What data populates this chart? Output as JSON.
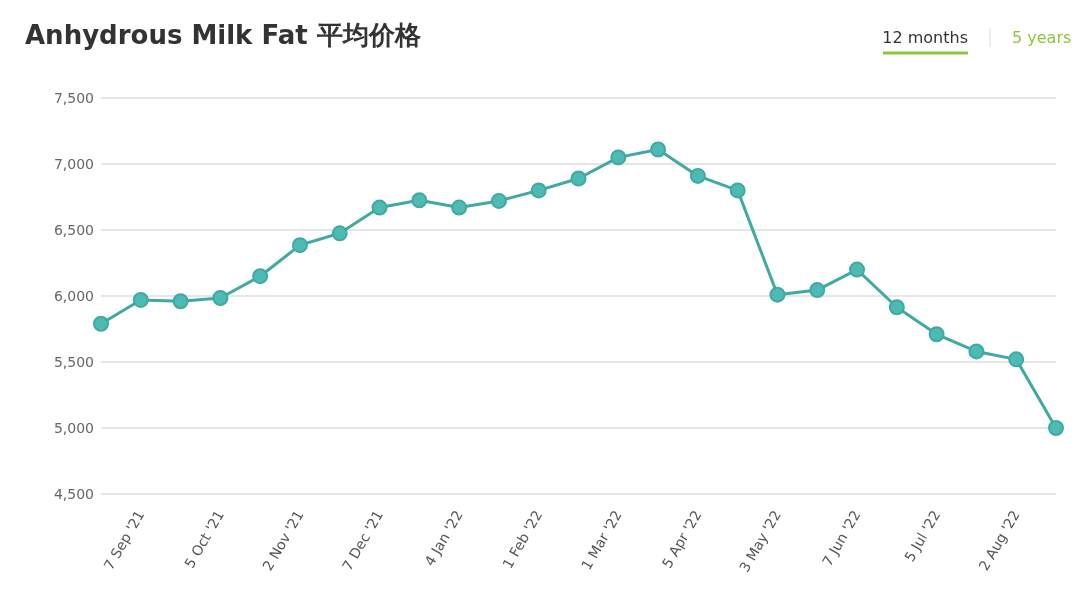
{
  "chart_data": {
    "type": "line",
    "title": "Anhydrous Milk Fat 平均价格",
    "annotations": [
      "12 months",
      "5 years"
    ],
    "categories": [
      null,
      "7 Sep '21",
      null,
      "5 Oct '21",
      null,
      "2 Nov '21",
      null,
      "7 Dec '21",
      null,
      "4 Jan '22",
      null,
      "1 Feb '22",
      null,
      "1 Mar '22",
      null,
      "5 Apr '22",
      null,
      "3 May '22",
      null,
      "7 Jun '22",
      null,
      "5 Jul '22",
      null,
      "2 Aug '22",
      null
    ],
    "series": [
      {
        "color": "#3fa9a2",
        "values": [
          5790,
          5970,
          5960,
          5985,
          6150,
          6385,
          6475,
          6670,
          6725,
          6670,
          6720,
          6800,
          6890,
          7050,
          7110,
          6910,
          6800,
          6010,
          6045,
          6200,
          5915,
          5710,
          5580,
          5520,
          5000
        ]
      }
    ],
    "ylim": [
      4500,
      7500
    ],
    "yticks": [
      {
        "value": 4500,
        "label": "4,500"
      },
      {
        "value": 5000,
        "label": "5,000"
      },
      {
        "value": 5500,
        "label": "5,500"
      },
      {
        "value": 6000,
        "label": "6,000"
      },
      {
        "value": 6500,
        "label": "6,500"
      },
      {
        "value": 7000,
        "label": "7,000"
      },
      {
        "value": 7500,
        "label": "7,500"
      }
    ],
    "grid": "y",
    "marker": "circle",
    "line_style": "solid"
  }
}
